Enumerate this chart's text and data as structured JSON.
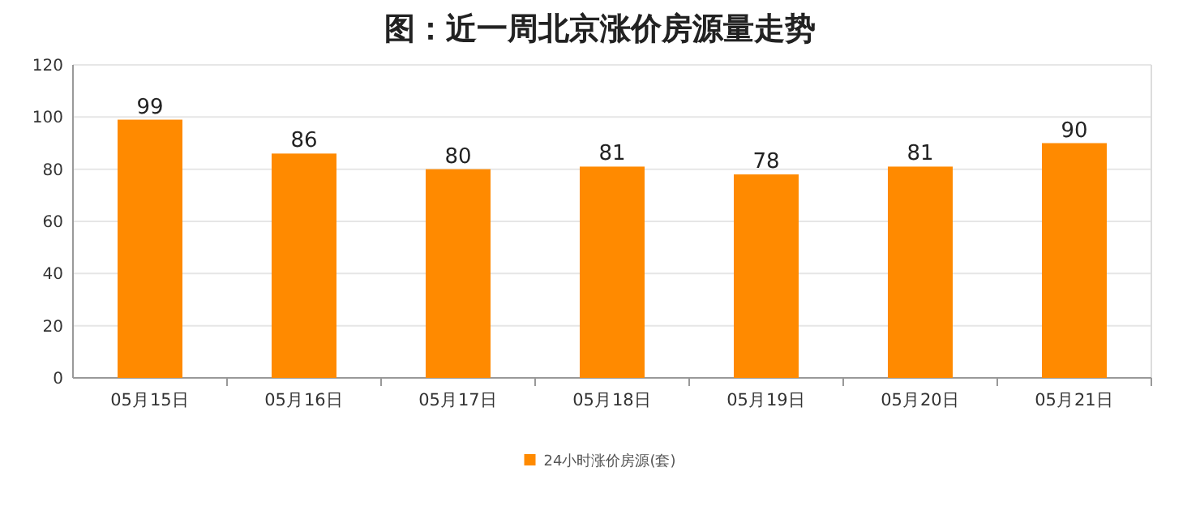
{
  "chart_data": {
    "type": "bar",
    "title": "图：近一周北京涨价房源量走势",
    "categories": [
      "05月15日",
      "05月16日",
      "05月17日",
      "05月18日",
      "05月19日",
      "05月20日",
      "05月21日"
    ],
    "series": [
      {
        "name": "24小时涨价房源(套)",
        "color": "#ff8a00",
        "values": [
          99,
          86,
          80,
          81,
          78,
          81,
          90
        ]
      }
    ],
    "ylim": [
      0,
      120
    ],
    "yticks": [
      0,
      20,
      40,
      60,
      80,
      100,
      120
    ],
    "grid": "y",
    "legend": "bottom",
    "data_labels": true
  }
}
